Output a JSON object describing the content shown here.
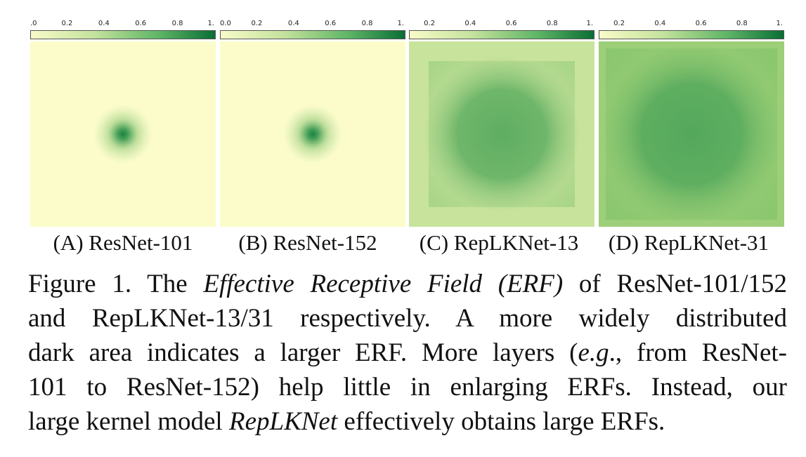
{
  "colorbar": {
    "gradient_start": "#f8fbc8",
    "gradient_end": "#0a6e35",
    "panel_ticks": [
      [
        ".0",
        "0.2",
        "0.4",
        "0.6",
        "0.8",
        "1."
      ],
      [
        "0.0",
        "0.2",
        "0.4",
        "0.6",
        "0.8",
        "1."
      ],
      [
        "0.2",
        "0.4",
        "0.6",
        "0.8",
        "1."
      ],
      [
        "0.2",
        "0.4",
        "0.6",
        "0.8",
        "1."
      ]
    ]
  },
  "panels": [
    {
      "id": "A",
      "label": "(A) ResNet-101",
      "base_color": "#fbfcca",
      "core_color": "#1a8445",
      "spread": "small"
    },
    {
      "id": "B",
      "label": "(B) ResNet-152",
      "base_color": "#fbfcca",
      "core_color": "#1a8445",
      "spread": "small"
    },
    {
      "id": "C",
      "label": "(C) RepLKNet-13",
      "base_color": "#c8e39c",
      "core_color": "#56a95d",
      "spread": "wide"
    },
    {
      "id": "D",
      "label": "(D) RepLKNet-31",
      "base_color": "#9ccf78",
      "core_color": "#4da45a",
      "spread": "very-wide"
    }
  ],
  "caption": {
    "lines": [
      [
        {
          "t": "Figure 1. The "
        },
        {
          "t": "Effective Receptive Field (ERF)",
          "i": true
        },
        {
          "t": " of ResNet-101/152"
        }
      ],
      [
        {
          "t": "and RepLKNet-13/31 respectively.  A more widely distributed"
        }
      ],
      [
        {
          "t": "dark area indicates a larger ERF. More layers ("
        },
        {
          "t": "e.g",
          "i": true
        },
        {
          "t": "., from ResNet-"
        }
      ],
      [
        {
          "t": "101 to ResNet-152) help little in enlarging ERFs.  Instead, our"
        }
      ],
      [
        {
          "t": "large kernel model "
        },
        {
          "t": "RepLKNet",
          "i": true
        },
        {
          "t": " effectively obtains large ERFs."
        }
      ]
    ]
  }
}
